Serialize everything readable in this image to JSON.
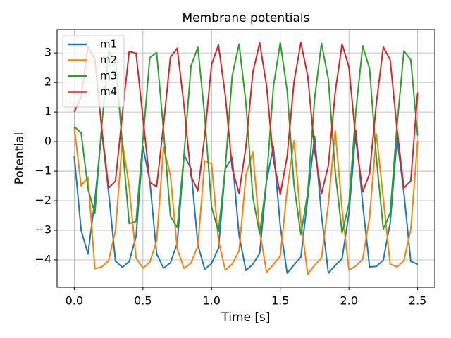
{
  "chart_data": {
    "type": "line",
    "title": "Membrane potentials",
    "x_label": "Time [s]",
    "y_label": "Potential",
    "x": [
      0,
      0.05,
      0.1,
      0.15,
      0.2,
      0.25,
      0.3,
      0.35,
      0.4,
      0.45,
      0.5,
      0.55,
      0.6,
      0.65,
      0.7,
      0.75,
      0.8,
      0.85,
      0.9,
      0.95,
      1.0,
      1.05,
      1.1,
      1.15,
      1.2,
      1.25,
      1.3,
      1.35,
      1.4,
      1.45,
      1.5,
      1.55,
      1.6,
      1.65,
      1.7,
      1.75,
      1.8,
      1.85,
      1.9,
      1.95,
      2.0,
      2.05,
      2.1,
      2.15,
      2.2,
      2.25,
      2.3,
      2.35,
      2.4,
      2.45,
      2.5
    ],
    "series": [
      {
        "name": "m1",
        "color": "#1f77b4",
        "values": [
          -0.5,
          -3.0,
          -3.8,
          -2.0,
          0.35,
          -1.71,
          -4.04,
          -4.25,
          -4.06,
          -3.21,
          -0.17,
          -1.33,
          -3.8,
          -4.28,
          -4.1,
          -3.44,
          -0.44,
          -0.93,
          -3.49,
          -4.32,
          -4.12,
          -3.61,
          -0.91,
          -0.54,
          -3.17,
          -4.36,
          -4.15,
          -3.78,
          -1.33,
          -0.17,
          -2.86,
          -4.45,
          -4.17,
          -3.91,
          -1.89,
          0.18,
          -2.49,
          -4.45,
          -4.19,
          -3.96,
          -2.43,
          0.39,
          -2.11,
          -4.24,
          -4.22,
          -4.01,
          -2.76,
          0.11,
          -1.73,
          -4.05,
          -4.15
        ]
      },
      {
        "name": "m2",
        "color": "#ff7f0e",
        "values": [
          0.5,
          -1.5,
          -1.2,
          -4.3,
          -4.24,
          -4.03,
          -3.0,
          0.01,
          -1.53,
          -3.94,
          -4.28,
          -4.08,
          -3.35,
          -0.2,
          -1.14,
          -3.64,
          -4.29,
          -4.11,
          -3.53,
          -0.65,
          -0.75,
          -3.35,
          -4.35,
          -4.14,
          -3.7,
          -1.14,
          -0.35,
          -3.02,
          -4.42,
          -4.16,
          -3.87,
          -1.64,
          0.03,
          -2.69,
          -4.49,
          -4.18,
          -3.94,
          -2.1,
          0.36,
          -2.3,
          -4.35,
          -4.21,
          -3.98,
          -2.56,
          0.25,
          -1.93,
          -4.14,
          -4.24,
          -4.03,
          -2.98,
          0.03
        ]
      },
      {
        "name": "m3",
        "color": "#2ca02c",
        "values": [
          0.5,
          0.3,
          -1.6,
          -2.43,
          0.53,
          3.07,
          2.77,
          -0.08,
          -2.77,
          -2.7,
          0.06,
          2.84,
          3.01,
          0.38,
          -2.52,
          -2.91,
          -0.41,
          2.56,
          3.19,
          0.85,
          -2.21,
          -3.05,
          -0.88,
          2.23,
          3.3,
          1.3,
          -1.86,
          -3.13,
          -1.32,
          1.86,
          3.35,
          1.72,
          -1.47,
          -3.15,
          -1.73,
          1.45,
          3.33,
          2.11,
          -1.02,
          -3.09,
          -2.1,
          1.01,
          3.24,
          2.47,
          -0.57,
          -2.96,
          -2.42,
          0.55,
          3.07,
          2.77,
          0.2
        ]
      },
      {
        "name": "m4",
        "color": "#d62728",
        "values": [
          1.0,
          1.5,
          3.2,
          2.78,
          0.44,
          -1.57,
          -1.34,
          0.92,
          3.05,
          2.99,
          0.81,
          -1.39,
          -1.52,
          0.56,
          2.85,
          3.16,
          1.18,
          -1.17,
          -1.66,
          0.19,
          2.61,
          3.27,
          1.56,
          -0.91,
          -1.75,
          -0.17,
          2.33,
          3.34,
          1.9,
          -0.61,
          -1.79,
          -0.5,
          2.02,
          3.35,
          2.22,
          -0.29,
          -1.77,
          -0.81,
          1.67,
          3.3,
          2.52,
          0.06,
          -1.7,
          -1.09,
          1.31,
          3.2,
          2.77,
          0.43,
          -1.57,
          -1.33,
          1.65
        ]
      }
    ],
    "xlim": [
      -0.125,
      2.625
    ],
    "ylim": [
      -4.93,
      3.79
    ],
    "xticks": [
      {
        "value": 0,
        "label": "0.0"
      },
      0.5,
      {
        "value": 1,
        "label": "1.0"
      },
      1.5,
      {
        "value": 2,
        "label": "2.0"
      },
      2.5
    ],
    "yticks": [
      {
        "value": -4,
        "label": "−4"
      },
      {
        "value": -3,
        "label": "−3"
      },
      {
        "value": -2,
        "label": "−2"
      },
      {
        "value": -1,
        "label": "−1"
      },
      0,
      1,
      2,
      3
    ],
    "grid": true,
    "legend": "upper left"
  }
}
